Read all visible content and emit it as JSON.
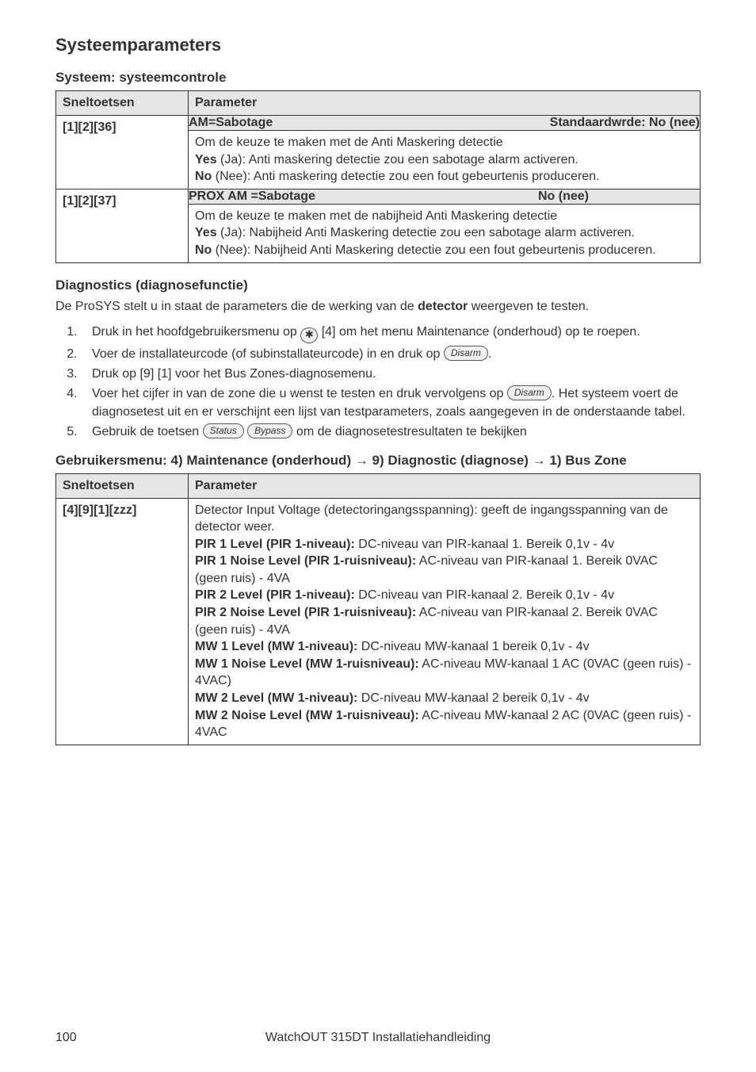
{
  "headings": {
    "h1": "Systeemparameters",
    "system_sub": "Systeem: systeemcontrole",
    "diag": "Diagnostics (diagnosefunctie)",
    "menu": "Gebruikersmenu: 4) Maintenance (onderhoud) → 9) Diagnostic (diagnose) → 1) Bus Zone"
  },
  "table_headers": {
    "snel": "Sneltoetsen",
    "param": "Parameter"
  },
  "system_table": {
    "rows": [
      {
        "keys": "[1][2][36]",
        "shaded_left": "AM=Sabotage",
        "shaded_right": "Standaardwrde: No (nee)",
        "body1": "Om de keuze te maken met de Anti Maskering detectie",
        "body2a": "Yes",
        "body2b": " (Ja): Anti maskering detectie zou een sabotage alarm activeren.",
        "body3a": "No",
        "body3b": " (Nee): Anti maskering detectie zou een fout gebeurtenis produceren."
      },
      {
        "keys": "[1][2][37]",
        "shaded_left": "PROX AM =Sabotage",
        "shaded_right": "No (nee)",
        "body1": "Om de keuze te maken met de nabijheid Anti Maskering detectie",
        "body2a": "Yes",
        "body2b": " (Ja): Nabijheid Anti Maskering detectie zou een sabotage alarm activeren.",
        "body3a": "No",
        "body3b": " (Nee): Nabijheid Anti Maskering detectie zou een fout gebeurtenis produceren."
      }
    ]
  },
  "diag_lead_a": "De ProSYS stelt u in staat de parameters die de werking van de ",
  "diag_lead_b": "detector",
  "diag_lead_c": " weergeven te testen.",
  "steps": {
    "s1a": "Druk in het hoofdgebruikersmenu op ",
    "s1b": " [4] om het menu Maintenance (onderhoud) op te roepen.",
    "s2a": "Voer de installateurcode (of subinstallateurcode) in en druk op ",
    "s2b": ".",
    "s3": "Druk op [9] [1] voor het Bus Zones-diagnosemenu.",
    "s4a": "Voer het cijfer in van de zone die u wenst te testen en druk vervolgens op ",
    "s4b": ". Het systeem voert de diagnosetest uit en er verschijnt een lijst van testparameters, zoals aangegeven in de onderstaande tabel.",
    "s5a": "Gebruik de toetsen ",
    "s5b": " om de diagnosetestresultaten te bekijken"
  },
  "badges": {
    "star": "✱",
    "disarm": "Disarm",
    "status": "Status",
    "bypass": "Bypass"
  },
  "diag_table": {
    "keys": "[4][9][1][zzz]",
    "l1": "Detector Input Voltage (detectoringangsspanning): geeft de ingangsspanning van de detector weer.",
    "l2a": "PIR 1 Level (PIR 1-niveau):",
    "l2b": " DC-niveau van PIR-kanaal 1. Bereik 0,1v - 4v",
    "l3a": "PIR 1 Noise Level (PIR 1-ruisniveau):",
    "l3b": " AC-niveau van PIR-kanaal 1. Bereik 0VAC (geen ruis) - 4VA",
    "l4a": "PIR 2 Level (PIR 1-niveau):",
    "l4b": " DC-niveau van PIR-kanaal 2. Bereik 0,1v - 4v",
    "l5a": "PIR 2 Noise Level (PIR 1-ruisniveau):",
    "l5b": " AC-niveau van PIR-kanaal 2. Bereik 0VAC (geen ruis) - 4VA",
    "l6a": "MW 1 Level (MW 1-niveau):",
    "l6b": " DC-niveau MW-kanaal 1 bereik 0,1v  - 4v",
    "l7a": "MW 1 Noise Level (MW 1-ruisniveau):",
    "l7b": " AC-niveau MW-kanaal 1 AC (0VAC (geen ruis)  - 4VAC)",
    "l8a": "MW 2 Level (MW 1-niveau):",
    "l8b": " DC-niveau MW-kanaal 2 bereik 0,1v  - 4v",
    "l9a": "MW 2 Noise Level (MW 1-ruisniveau):",
    "l9b": " AC-niveau MW-kanaal 2 AC (0VAC (geen ruis)  - 4VAC"
  },
  "footer": {
    "page": "100",
    "title": "WatchOUT 315DT Installatiehandleiding"
  }
}
